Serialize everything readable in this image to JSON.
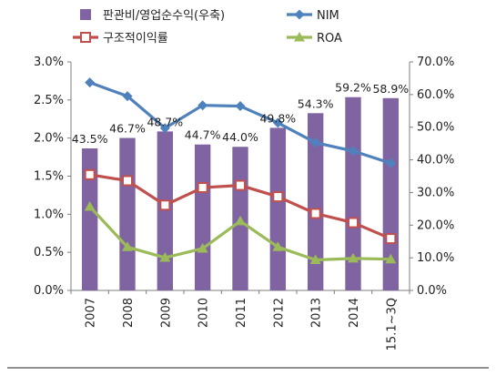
{
  "chart_data": {
    "type": "bar+line",
    "categories": [
      "2007",
      "2008",
      "2009",
      "2010",
      "2011",
      "2012",
      "2013",
      "2014",
      "15.1~3Q"
    ],
    "bar_series": {
      "name": "판관비/영업순수익(우축)",
      "axis": "right",
      "color": "#8064a2",
      "values": [
        43.5,
        46.7,
        48.7,
        44.7,
        44.0,
        49.8,
        54.3,
        59.2,
        58.9
      ],
      "labels": [
        "43.5%",
        "46.7%",
        "48.7%",
        "44.7%",
        "44.0%",
        "49.8%",
        "54.3%",
        "59.2%",
        "58.9%"
      ]
    },
    "line_series": [
      {
        "name": "NIM",
        "axis": "left",
        "color": "#4f81bd",
        "marker": "diamond",
        "values": [
          2.73,
          2.55,
          2.13,
          2.43,
          2.42,
          2.2,
          1.94,
          1.83,
          1.67
        ]
      },
      {
        "name": "구조적이익률",
        "axis": "left",
        "color": "#c0504d",
        "marker": "square-hollow",
        "values": [
          1.52,
          1.44,
          1.12,
          1.35,
          1.38,
          1.23,
          1.01,
          0.89,
          0.68
        ]
      },
      {
        "name": "ROA",
        "axis": "left",
        "color": "#9bbb59",
        "marker": "triangle",
        "values": [
          1.1,
          0.57,
          0.43,
          0.55,
          0.91,
          0.57,
          0.4,
          0.42,
          0.41
        ]
      }
    ],
    "left_axis": {
      "ylim": [
        0,
        3.0
      ],
      "ticks": [
        "0.0%",
        "0.5%",
        "1.0%",
        "1.5%",
        "2.0%",
        "2.5%",
        "3.0%"
      ]
    },
    "right_axis": {
      "ylim": [
        0,
        70
      ],
      "ticks": [
        "0.0%",
        "10.0%",
        "20.0%",
        "30.0%",
        "40.0%",
        "50.0%",
        "60.0%",
        "70.0%"
      ]
    },
    "legend": [
      {
        "label": "판관비/영업순수익(우축)",
        "kind": "bar",
        "color": "#8064a2"
      },
      {
        "label": "NIM",
        "kind": "line-diamond",
        "color": "#4f81bd"
      },
      {
        "label": "구조적이익률",
        "kind": "line-square",
        "color": "#c0504d"
      },
      {
        "label": "ROA",
        "kind": "line-triangle",
        "color": "#9bbb59"
      }
    ],
    "legend_position": "top"
  }
}
